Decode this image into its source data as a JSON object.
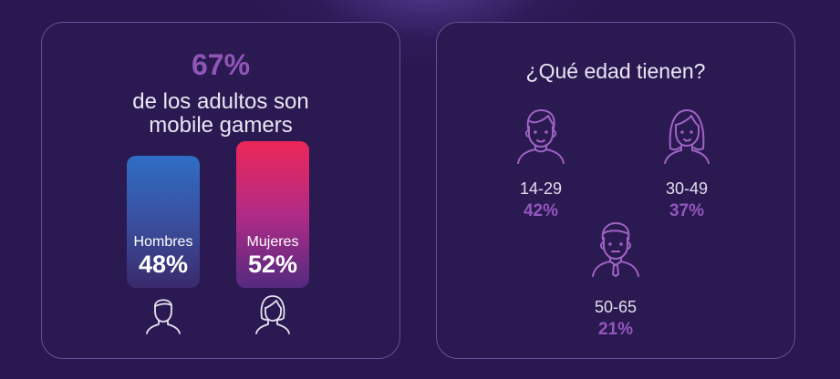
{
  "left_card": {
    "headline_percent": "67%",
    "headline_text_line1": "de los adultos son",
    "headline_text_line2": "mobile gamers",
    "bars": [
      {
        "label": "Hombres",
        "value_text": "48%",
        "value": 48,
        "icon": "man-icon",
        "colors": [
          "#2f6ec5",
          "#3a2a6c"
        ]
      },
      {
        "label": "Mujeres",
        "value_text": "52%",
        "value": 52,
        "icon": "woman-icon",
        "colors": [
          "#ec2758",
          "#532a80"
        ]
      }
    ]
  },
  "right_card": {
    "title": "¿Qué edad tienen?",
    "groups": [
      {
        "range": "14-29",
        "percent": "42%",
        "icon": "boy-icon"
      },
      {
        "range": "30-49",
        "percent": "37%",
        "icon": "woman-long-hair-icon"
      },
      {
        "range": "50-65",
        "percent": "21%",
        "icon": "man-with-tie-icon"
      }
    ]
  },
  "colors": {
    "background": "#2a1850",
    "accent_purple": "#8f56b8",
    "card_border": "#6a4f96"
  }
}
